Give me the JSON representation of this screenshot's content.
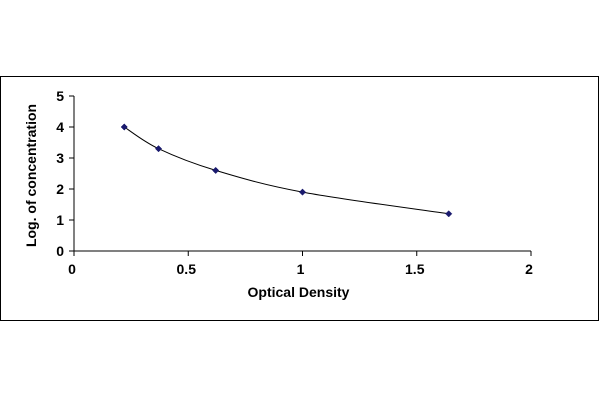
{
  "chart_data": {
    "type": "scatter",
    "title": "",
    "xlabel": "Optical Density",
    "ylabel": "Log. of concentration",
    "xlim": [
      0,
      2
    ],
    "ylim": [
      0,
      5
    ],
    "x_ticks": [
      "0",
      "0.5",
      "1",
      "1.5",
      "2"
    ],
    "y_ticks": [
      "0",
      "1",
      "2",
      "3",
      "4",
      "5"
    ],
    "grid": false,
    "legend": "none",
    "fit_curve": true,
    "series": [
      {
        "x": [
          0.22,
          0.37,
          0.62,
          1.0,
          1.64
        ],
        "y": [
          4.0,
          3.3,
          2.6,
          1.9,
          1.2
        ],
        "color": "#1a1a6e"
      }
    ]
  }
}
